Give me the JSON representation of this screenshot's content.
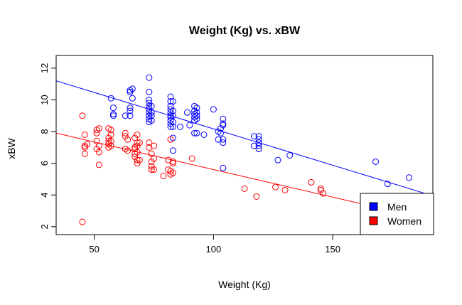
{
  "chart_data": {
    "type": "scatter",
    "title": "Weight (Kg) vs. xBW",
    "xlabel": "Weight (Kg)",
    "ylabel": "xBW",
    "xlim": [
      34,
      192
    ],
    "ylim": [
      1.5,
      12.8
    ],
    "xticks": [
      50,
      100,
      150
    ],
    "yticks": [
      2,
      4,
      6,
      8,
      10,
      12
    ],
    "legend": {
      "position": "bottom-right"
    },
    "series": [
      {
        "name": "Men",
        "color": "#0000ff",
        "fit_line": {
          "x": [
            34,
            192
          ],
          "y": [
            11.2,
            3.95
          ]
        },
        "points": [
          [
            57,
            10.1
          ],
          [
            58,
            9.5
          ],
          [
            58,
            9.1
          ],
          [
            58,
            9.0
          ],
          [
            63,
            9.0
          ],
          [
            65,
            10.6
          ],
          [
            65,
            10.5
          ],
          [
            65,
            9.5
          ],
          [
            65,
            9.3
          ],
          [
            65,
            9.0
          ],
          [
            66,
            10.7
          ],
          [
            66,
            10.1
          ],
          [
            73,
            11.4
          ],
          [
            73,
            10.5
          ],
          [
            73,
            10.0
          ],
          [
            73,
            9.8
          ],
          [
            73,
            9.6
          ],
          [
            73,
            9.4
          ],
          [
            73,
            9.2
          ],
          [
            73,
            9.0
          ],
          [
            73,
            8.8
          ],
          [
            73,
            8.6
          ],
          [
            74,
            9.6
          ],
          [
            74,
            9.2
          ],
          [
            74,
            9.0
          ],
          [
            74,
            8.7
          ],
          [
            82,
            10.2
          ],
          [
            82,
            9.9
          ],
          [
            82,
            9.6
          ],
          [
            82,
            9.4
          ],
          [
            82,
            9.2
          ],
          [
            82,
            9.0
          ],
          [
            82,
            8.9
          ],
          [
            82,
            8.7
          ],
          [
            82,
            8.5
          ],
          [
            82,
            8.3
          ],
          [
            83,
            9.9
          ],
          [
            83,
            9.3
          ],
          [
            83,
            9.0
          ],
          [
            83,
            8.6
          ],
          [
            83,
            8.3
          ],
          [
            83,
            7.6
          ],
          [
            83,
            6.8
          ],
          [
            86,
            8.3
          ],
          [
            89,
            9.2
          ],
          [
            90,
            8.4
          ],
          [
            92,
            9.6
          ],
          [
            92,
            9.3
          ],
          [
            92,
            9.1
          ],
          [
            92,
            8.9
          ],
          [
            92,
            8.7
          ],
          [
            92,
            7.9
          ],
          [
            93,
            9.5
          ],
          [
            93,
            9.2
          ],
          [
            93,
            9.0
          ],
          [
            93,
            8.8
          ],
          [
            93,
            7.9
          ],
          [
            96,
            7.8
          ],
          [
            100,
            9.4
          ],
          [
            102,
            8.0
          ],
          [
            102,
            7.5
          ],
          [
            103,
            8.2
          ],
          [
            103,
            7.9
          ],
          [
            104,
            8.8
          ],
          [
            104,
            8.5
          ],
          [
            104,
            8.4
          ],
          [
            104,
            7.5
          ],
          [
            104,
            7.3
          ],
          [
            104,
            5.7
          ],
          [
            117,
            7.7
          ],
          [
            117,
            7.1
          ],
          [
            119,
            7.7
          ],
          [
            119,
            7.5
          ],
          [
            119,
            7.3
          ],
          [
            119,
            7.1
          ],
          [
            119,
            6.9
          ],
          [
            127,
            6.2
          ],
          [
            132,
            6.5
          ],
          [
            168,
            6.1
          ],
          [
            173,
            4.7
          ],
          [
            182,
            5.1
          ]
        ]
      },
      {
        "name": "Women",
        "color": "#ff0000",
        "fit_line": {
          "x": [
            34,
            192
          ],
          "y": [
            7.9,
            2.4
          ]
        },
        "points": [
          [
            45,
            9.0
          ],
          [
            45,
            2.3
          ],
          [
            46,
            7.8
          ],
          [
            46,
            7.1
          ],
          [
            46,
            7.0
          ],
          [
            46,
            6.6
          ],
          [
            47,
            7.2
          ],
          [
            51,
            8.1
          ],
          [
            51,
            7.9
          ],
          [
            51,
            7.4
          ],
          [
            51,
            6.9
          ],
          [
            52,
            8.2
          ],
          [
            52,
            7.1
          ],
          [
            52,
            6.7
          ],
          [
            52,
            5.9
          ],
          [
            56,
            8.2
          ],
          [
            56,
            7.6
          ],
          [
            56,
            7.4
          ],
          [
            56,
            7.2
          ],
          [
            56,
            7.0
          ],
          [
            57,
            8.1
          ],
          [
            57,
            7.8
          ],
          [
            57,
            7.4
          ],
          [
            57,
            7.1
          ],
          [
            63,
            7.9
          ],
          [
            63,
            7.7
          ],
          [
            63,
            6.9
          ],
          [
            64,
            7.5
          ],
          [
            64,
            6.8
          ],
          [
            67,
            7.6
          ],
          [
            67,
            7.0
          ],
          [
            67,
            6.9
          ],
          [
            67,
            6.6
          ],
          [
            67,
            6.4
          ],
          [
            68,
            7.8
          ],
          [
            68,
            7.3
          ],
          [
            68,
            7.1
          ],
          [
            68,
            6.7
          ],
          [
            68,
            6.2
          ],
          [
            68,
            6.0
          ],
          [
            69,
            7.3
          ],
          [
            69,
            6.2
          ],
          [
            73,
            7.3
          ],
          [
            73,
            7.0
          ],
          [
            74,
            6.6
          ],
          [
            74,
            6.1
          ],
          [
            74,
            5.8
          ],
          [
            74,
            5.6
          ],
          [
            75,
            7.1
          ],
          [
            75,
            6.3
          ],
          [
            75,
            5.6
          ],
          [
            79,
            5.2
          ],
          [
            81,
            6.2
          ],
          [
            81,
            5.6
          ],
          [
            82,
            7.5
          ],
          [
            82,
            5.5
          ],
          [
            82,
            5.3
          ],
          [
            83,
            6.1
          ],
          [
            83,
            6.0
          ],
          [
            83,
            5.4
          ],
          [
            91,
            6.3
          ],
          [
            113,
            4.4
          ],
          [
            118,
            3.9
          ],
          [
            126,
            4.5
          ],
          [
            130,
            4.3
          ],
          [
            141,
            4.8
          ],
          [
            145,
            4.4
          ],
          [
            145,
            4.3
          ],
          [
            146,
            4.1
          ]
        ]
      }
    ]
  }
}
